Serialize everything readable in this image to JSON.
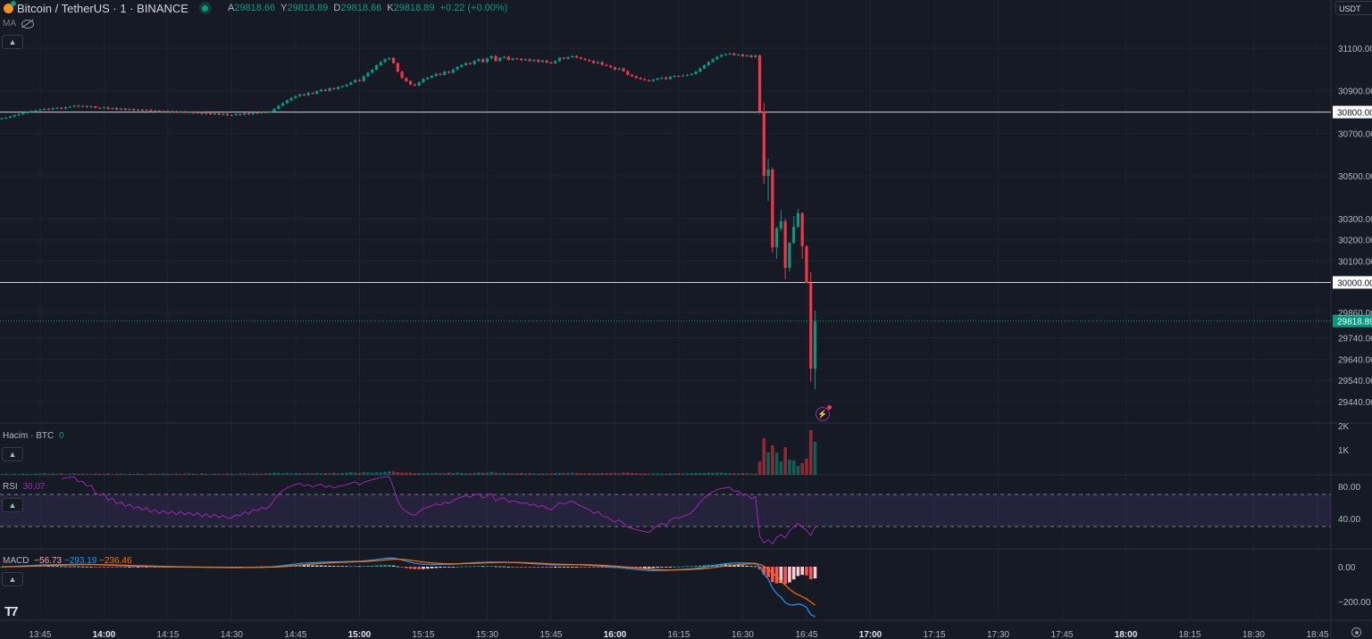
{
  "header": {
    "symbol": "Bitcoin / TetherUS · 1 · BINANCE",
    "ohlc": [
      {
        "k": "A",
        "v": "29818.66"
      },
      {
        "k": "Y",
        "v": "29818.89"
      },
      {
        "k": "D",
        "v": "29818.66"
      },
      {
        "k": "K",
        "v": "29818.89"
      }
    ],
    "change": "+0.22 (+0.00%)",
    "ma_label": "MA",
    "currency": "USDT"
  },
  "panes": {
    "volume": {
      "label": "Hacim · BTC",
      "value": "0"
    },
    "rsi": {
      "label": "RSI",
      "value": "30.07"
    },
    "macd": {
      "label": "MACD",
      "hist": "−56.73",
      "macd": "−293.19",
      "signal": "−236.46"
    }
  },
  "colors": {
    "up": "#089981",
    "down": "#f23645",
    "background": "#161a25",
    "rsi": "#9c27b0",
    "macd": "#2196f3",
    "signal": "#ff6d00"
  },
  "chart_data": {
    "type": "candlestick",
    "interval_minutes": 1,
    "first_candle_time": "13:36",
    "closes_early": [
      30770,
      30774,
      30779,
      30785,
      30790,
      30796,
      30800,
      30805,
      30808,
      30812,
      30815,
      30813,
      30818,
      30820,
      30816,
      30822,
      30825,
      30830,
      30826,
      30828,
      30824,
      30827,
      30820,
      30818,
      30822,
      30815,
      30819,
      30812,
      30816,
      30810,
      30814,
      30808,
      30811,
      30806,
      30810,
      30803,
      30807,
      30801,
      30805,
      30800,
      30804,
      30798,
      30803,
      30797,
      30801,
      30795,
      30799,
      30792,
      30796,
      30790,
      30794,
      30788,
      30791,
      30785,
      30786,
      30790,
      30788,
      30794,
      30790,
      30797,
      30795,
      30800,
      30798,
      30803,
      30815,
      30830,
      30842,
      30855,
      30866,
      30875,
      30883,
      30879,
      30890,
      30886,
      30898,
      30905,
      30900,
      30912,
      30908,
      30918,
      30922,
      30929,
      30940,
      30951,
      30946,
      30968,
      30985,
      30999,
      31020,
      31035,
      31048,
      31054,
      31030,
      30990,
      30960,
      30945,
      30930,
      30925,
      30940,
      30955,
      30962,
      30970,
      30980,
      30975,
      30990,
      30985,
      31000,
      31012,
      31021,
      31030,
      31025,
      31040,
      31048,
      31035,
      31052,
      31063,
      31040,
      31055,
      31060,
      31045,
      31052,
      31050,
      31044,
      31048,
      31040,
      31045,
      31036,
      31042,
      31033,
      31029,
      31040,
      31055,
      31050,
      31058,
      31063,
      31056,
      31050,
      31045,
      31040,
      31030,
      31035,
      31022,
      31018,
      31010,
      31000,
      31005,
      30992,
      30975,
      30968,
      30960,
      30955,
      30950,
      30946,
      30952,
      30958,
      30962,
      30955,
      30965,
      30970,
      30968,
      30972,
      30975,
      30979,
      30990,
      31005,
      31020,
      31035,
      31048,
      31060,
      31068,
      31072,
      31075,
      31068,
      31070,
      31062,
      31066,
      31058,
      31066
    ],
    "ohlc_late": [
      [
        31066,
        31070,
        30790,
        30802
      ],
      [
        30802,
        30844,
        30463,
        30501
      ],
      [
        30501,
        30580,
        30383,
        30530
      ],
      [
        30530,
        30540,
        30140,
        30165
      ],
      [
        30165,
        30262,
        30111,
        30253
      ],
      [
        30253,
        30341,
        30240,
        30287
      ],
      [
        30287,
        30300,
        30015,
        30069
      ],
      [
        30069,
        30190,
        30050,
        30186
      ],
      [
        30186,
        30312,
        30180,
        30262
      ],
      [
        30262,
        30345,
        30255,
        30325
      ],
      [
        30325,
        30330,
        30111,
        30170
      ],
      [
        30170,
        30175,
        29995,
        29998
      ],
      [
        29998,
        30048,
        29533,
        29595
      ],
      [
        29595,
        29868,
        29499,
        29818.89
      ]
    ],
    "volumes": [
      30,
      45,
      25,
      50,
      35,
      60,
      40,
      30,
      55,
      45,
      70,
      35,
      50,
      40,
      65,
      30,
      45,
      55,
      35,
      50,
      40,
      30,
      55,
      45,
      35,
      60,
      25,
      40,
      50,
      30,
      45,
      35,
      55,
      40,
      30,
      50,
      45,
      35,
      60,
      40,
      35,
      50,
      30,
      45,
      55,
      40,
      35,
      60,
      45,
      30,
      50,
      40,
      35,
      55,
      45,
      30,
      50,
      65,
      40,
      45,
      55,
      40,
      60,
      70,
      90,
      75,
      60,
      80,
      55,
      70,
      65,
      50,
      75,
      60,
      80,
      55,
      70,
      65,
      85,
      60,
      75,
      90,
      110,
      95,
      80,
      120,
      100,
      85,
      110,
      95,
      130,
      150,
      140,
      110,
      95,
      85,
      90,
      70,
      80,
      65,
      75,
      60,
      85,
      70,
      65,
      90,
      80,
      95,
      75,
      70,
      65,
      80,
      100,
      85,
      95,
      120,
      90,
      75,
      80,
      70,
      65,
      60,
      75,
      55,
      70,
      60,
      50,
      65,
      55,
      60,
      75,
      85,
      70,
      80,
      90,
      65,
      60,
      55,
      70,
      60,
      65,
      75,
      70,
      80,
      85,
      60,
      90,
      95,
      75,
      70,
      55,
      60,
      50,
      65,
      60,
      55,
      50,
      60,
      55,
      65,
      60,
      55,
      70,
      75,
      80,
      85,
      90,
      80,
      95,
      85,
      75,
      70,
      65,
      60,
      70,
      65,
      55,
      60,
      556,
      1519,
      926,
      1222,
      926,
      556,
      1148,
      630,
      593,
      370,
      481,
      667,
      1852,
      1370
    ],
    "price_ticks": [
      "31100.00",
      "30900.00",
      "30700.00",
      "30500.00",
      "30300.00",
      "30200.00",
      "30100.00",
      "29860.00",
      "29740.00",
      "29640.00",
      "29540.00",
      "29440.00"
    ],
    "horizontal_lines": [
      {
        "price": 30800,
        "label": "30800.00"
      },
      {
        "price": 30000,
        "label": "30000.00"
      }
    ],
    "last_price": {
      "price": 29818.89,
      "label": "29818.89"
    },
    "volume_ticks": [
      "2K",
      "1K"
    ],
    "rsi_ticks": [
      "80.00",
      "40.00"
    ],
    "rsi_band": [
      30,
      70
    ],
    "macd_ticks": [
      "0.00",
      "-200.00"
    ],
    "time_ticks": [
      "13:45",
      "14:00",
      "14:15",
      "14:30",
      "14:45",
      "15:00",
      "15:15",
      "15:30",
      "15:45",
      "16:00",
      "16:15",
      "16:30",
      "16:45",
      "17:00",
      "17:15",
      "17:30",
      "17:45",
      "18:00",
      "18:15",
      "18:30",
      "18:45"
    ],
    "time_ticks_bold": [
      "14:00",
      "15:00",
      "16:00",
      "17:00",
      "18:00"
    ]
  }
}
